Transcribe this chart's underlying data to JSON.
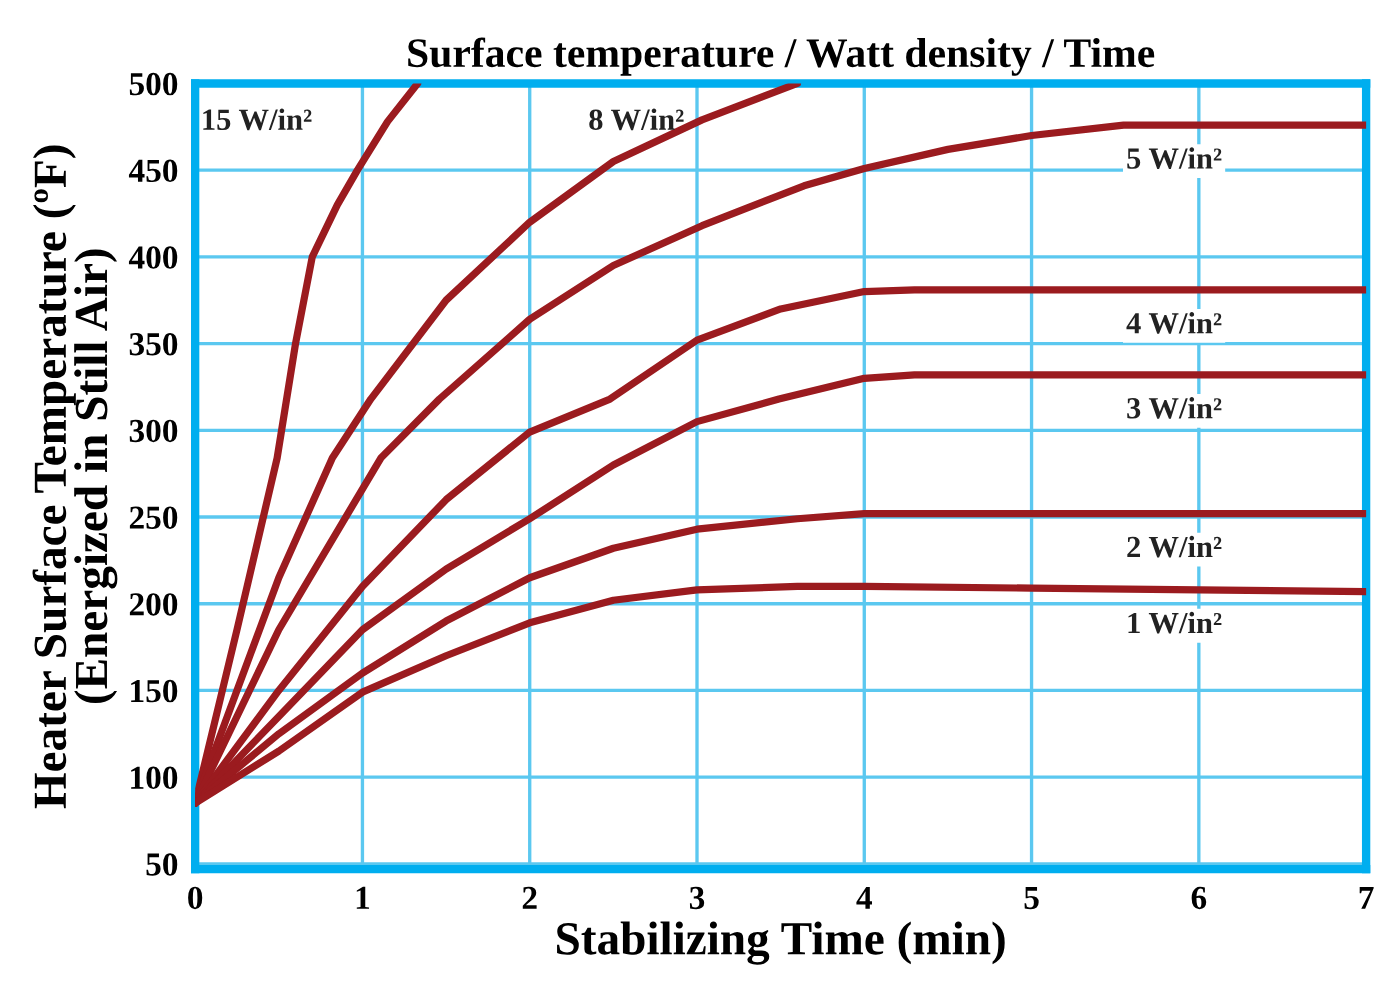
{
  "chart_data": {
    "type": "line",
    "title": "Surface temperature / Watt density / Time",
    "xlabel": "Stabilizing Time (min)",
    "ylabel": "Heater Surface Temperature (ºF)\n(Energized in Still Air)",
    "xlim": [
      0,
      7
    ],
    "xticks": [
      0,
      1,
      2,
      3,
      4,
      5,
      6,
      7
    ],
    "ylim": [
      47,
      500
    ],
    "yticks": [
      50,
      100,
      150,
      200,
      250,
      300,
      350,
      400,
      450,
      500
    ],
    "grid": true,
    "line_style": "solid",
    "marker": "none",
    "series": [
      {
        "name": "15 W/in²",
        "color": "#9b1b1f",
        "x": [
          0,
          0.25,
          0.49,
          0.6,
          0.7,
          0.85,
          0.97,
          1.15,
          1.33
        ],
        "values": [
          85,
          185,
          284,
          350,
          400,
          430,
          450,
          478,
          500
        ]
      },
      {
        "name": "8 W/in²",
        "color": "#9b1b1f",
        "x": [
          0,
          0.5,
          0.82,
          1.05,
          1.5,
          2,
          2.5,
          3.03,
          3.6
        ],
        "values": [
          85,
          215,
          284,
          318,
          375,
          420,
          455,
          479,
          500
        ]
      },
      {
        "name": "5 W/in²",
        "color": "#9b1b1f",
        "x": [
          0,
          0.5,
          1.11,
          1.46,
          2,
          2.5,
          3.03,
          3.64,
          4,
          4.5,
          5,
          5.55,
          7
        ],
        "values": [
          85,
          185,
          284,
          318,
          364,
          395,
          418,
          441,
          451,
          462,
          470,
          476,
          476
        ]
      },
      {
        "name": "4 W/in²",
        "color": "#9b1b1f",
        "x": [
          0,
          0.5,
          1,
          1.5,
          2,
          2.48,
          3,
          3.5,
          4,
          4.3,
          7
        ],
        "values": [
          85,
          150,
          210,
          260,
          299,
          318,
          352,
          370,
          380,
          381,
          381
        ]
      },
      {
        "name": "3 W/in²",
        "color": "#9b1b1f",
        "x": [
          0,
          0.5,
          1,
          1.5,
          2,
          2.5,
          3,
          3.49,
          4,
          4.3,
          7
        ],
        "values": [
          85,
          135,
          185,
          220,
          249,
          280,
          305,
          318,
          330,
          332,
          332
        ]
      },
      {
        "name": "2 W/in²",
        "color": "#9b1b1f",
        "x": [
          0,
          0.5,
          1,
          1.5,
          2,
          2.5,
          3,
          3.6,
          4,
          7
        ],
        "values": [
          85,
          125,
          160,
          190,
          215,
          232,
          243,
          249,
          252,
          252
        ]
      },
      {
        "name": "1 W/in²",
        "color": "#9b1b1f",
        "x": [
          0,
          0.5,
          1,
          1.5,
          2,
          2.5,
          3,
          3.6,
          4,
          5,
          6,
          7
        ],
        "values": [
          85,
          115,
          149,
          170,
          189,
          202,
          208,
          210,
          210,
          209,
          208,
          207
        ]
      }
    ]
  }
}
